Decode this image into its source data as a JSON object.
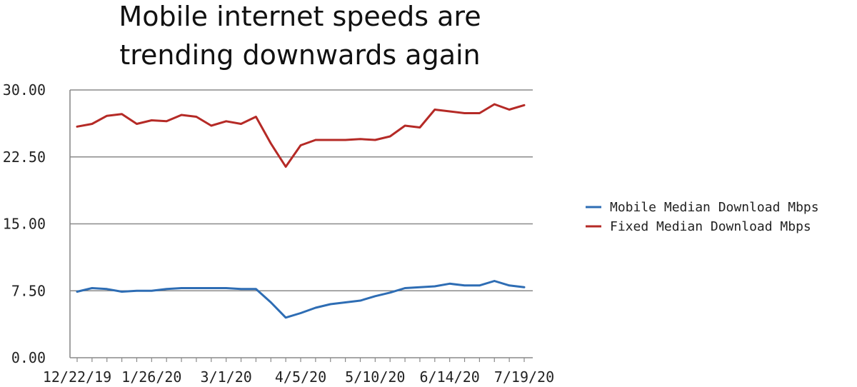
{
  "chart_data": {
    "type": "line",
    "title_lines": [
      "Mobile internet speeds are",
      "trending downwards again"
    ],
    "x": [
      "12/22/19",
      "12/29/19",
      "1/5/20",
      "1/12/20",
      "1/19/20",
      "1/26/20",
      "2/2/20",
      "2/9/20",
      "2/16/20",
      "2/23/20",
      "3/1/20",
      "3/8/20",
      "3/15/20",
      "3/22/20",
      "3/29/20",
      "4/5/20",
      "4/12/20",
      "4/19/20",
      "4/26/20",
      "5/3/20",
      "5/10/20",
      "5/17/20",
      "5/24/20",
      "5/31/20",
      "6/7/20",
      "6/14/20",
      "6/21/20",
      "6/28/20",
      "7/5/20",
      "7/12/20",
      "7/19/20"
    ],
    "x_tick_labels": [
      "12/22/19",
      "1/26/20",
      "3/1/20",
      "4/5/20",
      "5/10/20",
      "6/14/20",
      "7/19/20"
    ],
    "ylim": [
      0,
      30
    ],
    "y_tick_labels": [
      "0.00",
      "7.50",
      "15.00",
      "22.50",
      "30.00"
    ],
    "grid": true,
    "legend_position": "right",
    "series": [
      {
        "name": "Mobile Median Download Mbps",
        "color": "#2e6db4",
        "values": [
          7.4,
          7.8,
          7.7,
          7.4,
          7.5,
          7.5,
          7.7,
          7.8,
          7.8,
          7.8,
          7.8,
          7.7,
          7.7,
          6.2,
          4.5,
          5.0,
          5.6,
          6.0,
          6.2,
          6.4,
          6.9,
          7.3,
          7.8,
          7.9,
          8.0,
          8.3,
          8.1,
          8.1,
          8.6,
          8.1,
          7.9
        ]
      },
      {
        "name": "Fixed Median Download Mbps",
        "color": "#b52a26",
        "values": [
          25.9,
          26.2,
          27.1,
          27.3,
          26.2,
          26.6,
          26.5,
          27.2,
          27.0,
          26.0,
          26.5,
          26.2,
          27.0,
          24.0,
          21.4,
          23.8,
          24.4,
          24.4,
          24.4,
          24.5,
          24.4,
          24.8,
          26.0,
          25.8,
          27.8,
          27.6,
          27.4,
          27.4,
          28.4,
          27.8,
          28.3
        ]
      }
    ]
  },
  "colors": {
    "grid": "#8a8a8a",
    "axis": "#8a8a8a"
  }
}
